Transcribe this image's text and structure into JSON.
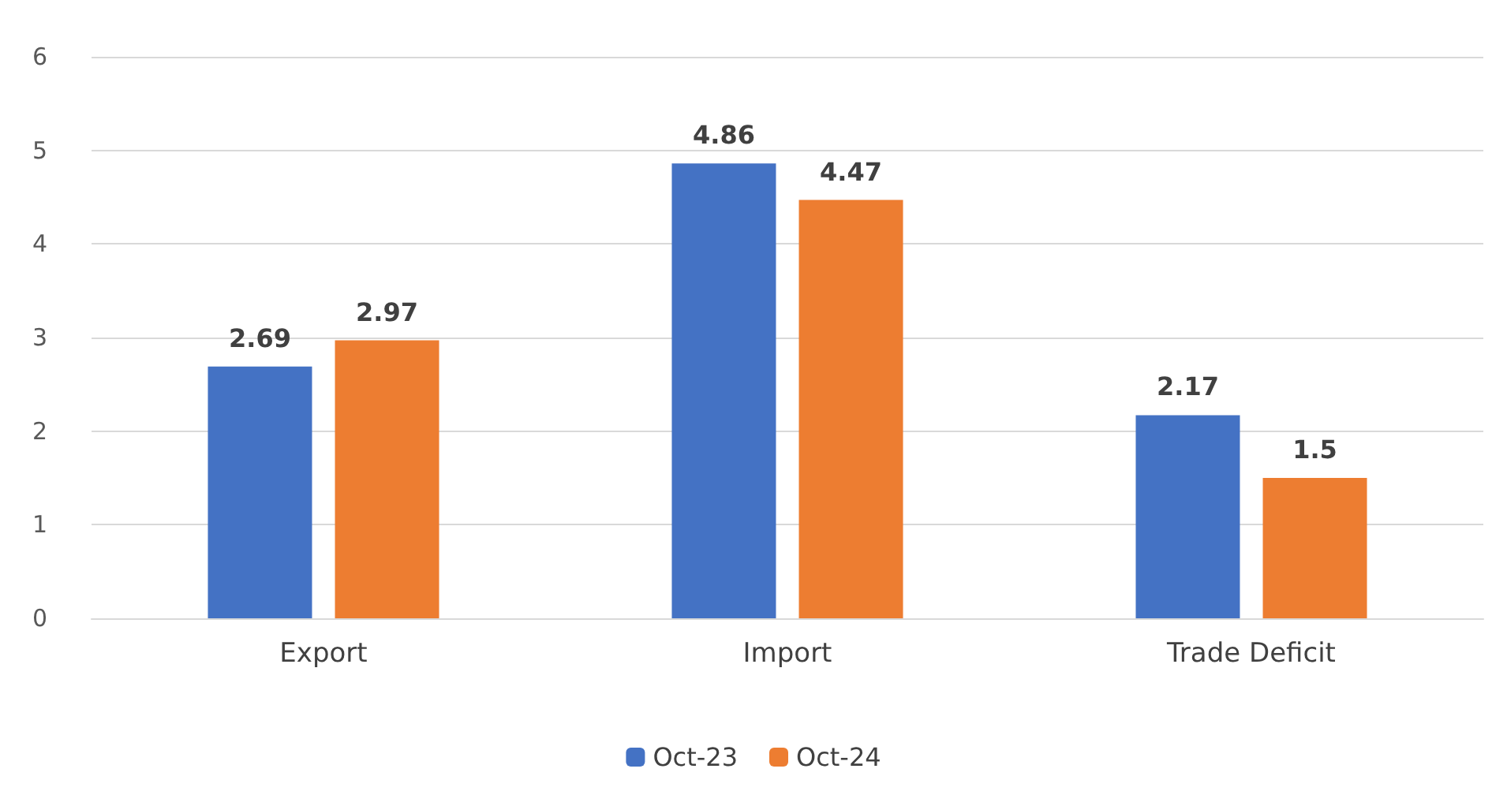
{
  "chart_data": {
    "type": "bar",
    "categories": [
      "Export",
      "Import",
      "Trade Deficit"
    ],
    "series": [
      {
        "name": "Oct-23",
        "color": "#4472c4",
        "values": [
          2.69,
          4.86,
          2.17
        ]
      },
      {
        "name": "Oct-24",
        "color": "#ed7d31",
        "values": [
          2.97,
          4.47,
          1.5
        ]
      }
    ],
    "ylim": [
      0,
      6
    ],
    "yticks": [
      0,
      1,
      2,
      3,
      4,
      5,
      6
    ],
    "grid": "y",
    "legend": "bottom",
    "data_labels": true
  }
}
